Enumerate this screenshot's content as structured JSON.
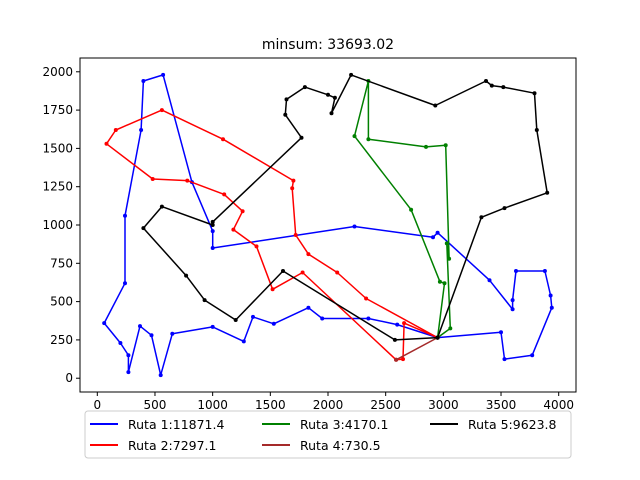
{
  "chart_data": {
    "type": "line",
    "title": "minsum: 33693.02",
    "xlim": [
      -150,
      4150
    ],
    "ylim": [
      -90,
      2090
    ],
    "xticks": [
      0,
      500,
      1000,
      1500,
      2000,
      2500,
      3000,
      3500,
      4000
    ],
    "yticks": [
      0,
      250,
      500,
      750,
      1000,
      1250,
      1500,
      1750,
      2000
    ],
    "grid": false,
    "legend_position": "below",
    "series": [
      {
        "name": "Ruta 1:11871.4",
        "color": "#0000ff",
        "points": [
          [
            2950,
            265
          ],
          [
            3500,
            300
          ],
          [
            3530,
            125
          ],
          [
            3770,
            150
          ],
          [
            3940,
            460
          ],
          [
            3930,
            540
          ],
          [
            3880,
            700
          ],
          [
            3630,
            700
          ],
          [
            3600,
            510
          ],
          [
            3600,
            450
          ],
          [
            3400,
            640
          ],
          [
            2950,
            950
          ],
          [
            2910,
            920
          ],
          [
            2230,
            990
          ],
          [
            1000,
            850
          ],
          [
            1000,
            960
          ],
          [
            820,
            1280
          ],
          [
            570,
            1980
          ],
          [
            400,
            1940
          ],
          [
            380,
            1620
          ],
          [
            240,
            1060
          ],
          [
            240,
            620
          ],
          [
            60,
            360
          ],
          [
            200,
            230
          ],
          [
            270,
            150
          ],
          [
            270,
            40
          ],
          [
            370,
            340
          ],
          [
            470,
            280
          ],
          [
            550,
            20
          ],
          [
            650,
            290
          ],
          [
            1000,
            335
          ],
          [
            1270,
            240
          ],
          [
            1350,
            400
          ],
          [
            1530,
            355
          ],
          [
            1830,
            460
          ],
          [
            1950,
            390
          ],
          [
            2350,
            390
          ],
          [
            2600,
            350
          ],
          [
            2950,
            265
          ]
        ]
      },
      {
        "name": "Ruta 2:7297.1",
        "color": "#ff0000",
        "points": [
          [
            2950,
            265
          ],
          [
            2660,
            360
          ],
          [
            2650,
            125
          ],
          [
            2590,
            120
          ],
          [
            1780,
            690
          ],
          [
            1520,
            580
          ],
          [
            1380,
            860
          ],
          [
            1180,
            970
          ],
          [
            1260,
            1090
          ],
          [
            1100,
            1200
          ],
          [
            780,
            1290
          ],
          [
            480,
            1300
          ],
          [
            80,
            1530
          ],
          [
            160,
            1620
          ],
          [
            560,
            1750
          ],
          [
            1090,
            1560
          ],
          [
            1700,
            1290
          ],
          [
            1690,
            1240
          ],
          [
            1720,
            935
          ],
          [
            1830,
            810
          ],
          [
            2080,
            690
          ],
          [
            2330,
            520
          ],
          [
            2950,
            265
          ]
        ]
      },
      {
        "name": "Ruta 3:4170.1",
        "color": "#008000",
        "points": [
          [
            2950,
            265
          ],
          [
            3060,
            325
          ],
          [
            3030,
            880
          ],
          [
            3050,
            780
          ],
          [
            3020,
            1520
          ],
          [
            2850,
            1510
          ],
          [
            2350,
            1560
          ],
          [
            2350,
            1940
          ],
          [
            2230,
            1580
          ],
          [
            2720,
            1100
          ],
          [
            2970,
            630
          ],
          [
            3010,
            620
          ],
          [
            2950,
            265
          ]
        ]
      }
    ],
    "series_extra": [
      {
        "name": "Ruta 4:730.5",
        "color": "#a52a2a",
        "points": [
          [
            2950,
            265
          ],
          [
            2590,
            120
          ],
          [
            2950,
            265
          ]
        ]
      },
      {
        "name": "Ruta 5:9623.8",
        "color": "#000000",
        "points": [
          [
            2950,
            265
          ],
          [
            3330,
            1050
          ],
          [
            3530,
            1110
          ],
          [
            3900,
            1210
          ],
          [
            3810,
            1620
          ],
          [
            3790,
            1860
          ],
          [
            3520,
            1900
          ],
          [
            3420,
            1910
          ],
          [
            3370,
            1940
          ],
          [
            2930,
            1780
          ],
          [
            2200,
            1980
          ],
          [
            2030,
            1730
          ],
          [
            2060,
            1830
          ],
          [
            2000,
            1850
          ],
          [
            1800,
            1900
          ],
          [
            1640,
            1820
          ],
          [
            1630,
            1720
          ],
          [
            1770,
            1570
          ],
          [
            1000,
            1020
          ],
          [
            1000,
            1000
          ],
          [
            560,
            1120
          ],
          [
            400,
            980
          ],
          [
            770,
            670
          ],
          [
            930,
            510
          ],
          [
            1200,
            380
          ],
          [
            1610,
            700
          ],
          [
            2580,
            250
          ],
          [
            2950,
            265
          ]
        ]
      }
    ]
  }
}
